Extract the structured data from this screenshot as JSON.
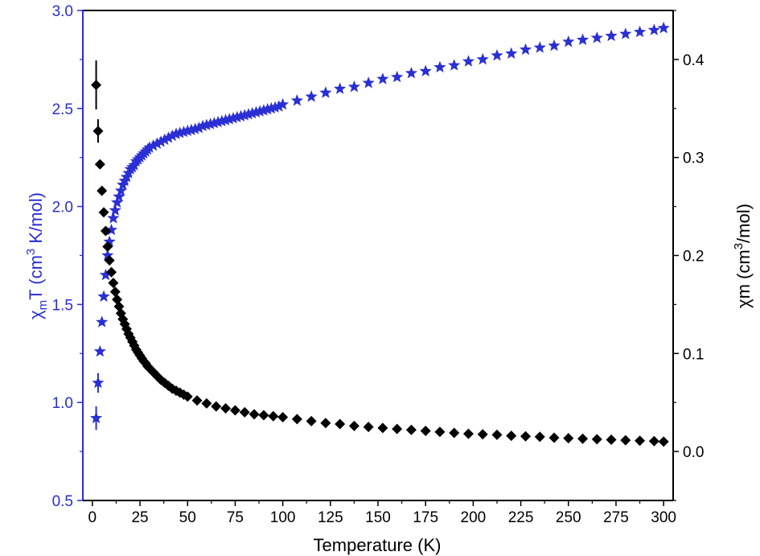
{
  "chart_data": {
    "type": "scatter",
    "xlabel": "Temperature (K)",
    "ylabel_left": {
      "main": "χ",
      "sub": "m",
      "mid": "T (cm",
      "sup": "3",
      "tail": " K/mol)"
    },
    "ylabel_right": {
      "main": "χm (cm",
      "sup": "3",
      "tail": "/mol)"
    },
    "xlim": [
      -5,
      305
    ],
    "ylim_left": [
      0.5,
      3.0
    ],
    "ylim_right": [
      -0.05,
      0.45
    ],
    "x_ticks": [
      0,
      25,
      50,
      75,
      100,
      125,
      150,
      175,
      200,
      225,
      250,
      275,
      300
    ],
    "y_left_ticks": [
      "0.5",
      "1.0",
      "1.5",
      "2.0",
      "2.5",
      "3.0"
    ],
    "y_right_ticks": [
      "0.0",
      "0.1",
      "0.2",
      "0.3",
      "0.4"
    ],
    "colors": {
      "left_axis": "#2a2fd4",
      "chiT_marker": "#2a2fd4",
      "chi_marker": "#000000",
      "right_axis": "#000000"
    },
    "series": [
      {
        "id": "chiT",
        "axis": "left",
        "marker": "star",
        "x": [
          2,
          3,
          4,
          5,
          6,
          7,
          8,
          9,
          10,
          11,
          12,
          13,
          14,
          15,
          16,
          17,
          18,
          19,
          20,
          21,
          22,
          23,
          24,
          25,
          26,
          27,
          28,
          29,
          30,
          32,
          34,
          36,
          38,
          40,
          42,
          44,
          46,
          48,
          50,
          52,
          54,
          56,
          58,
          60,
          62,
          64,
          66,
          68,
          70,
          72,
          74,
          76,
          78,
          80,
          82,
          84,
          86,
          88,
          90,
          92,
          94,
          96,
          98,
          100,
          107.5,
          115,
          122.5,
          130,
          137.5,
          145,
          152.5,
          160,
          167.5,
          175,
          182.5,
          190,
          197.5,
          205,
          212.5,
          220,
          227.5,
          235,
          242.5,
          250,
          257.5,
          265,
          272.5,
          280,
          287.5,
          295,
          300
        ],
        "y": [
          0.92,
          1.1,
          1.26,
          1.41,
          1.54,
          1.65,
          1.75,
          1.82,
          1.88,
          1.94,
          1.98,
          2.02,
          2.05,
          2.08,
          2.11,
          2.13,
          2.15,
          2.17,
          2.19,
          2.2,
          2.21,
          2.23,
          2.24,
          2.25,
          2.26,
          2.27,
          2.28,
          2.29,
          2.3,
          2.31,
          2.32,
          2.33,
          2.34,
          2.35,
          2.36,
          2.37,
          2.375,
          2.38,
          2.385,
          2.39,
          2.395,
          2.4,
          2.41,
          2.415,
          2.42,
          2.425,
          2.43,
          2.435,
          2.44,
          2.445,
          2.45,
          2.455,
          2.46,
          2.465,
          2.47,
          2.475,
          2.48,
          2.485,
          2.49,
          2.495,
          2.5,
          2.505,
          2.51,
          2.52,
          2.54,
          2.56,
          2.58,
          2.6,
          2.61,
          2.63,
          2.65,
          2.66,
          2.68,
          2.69,
          2.71,
          2.72,
          2.74,
          2.75,
          2.77,
          2.78,
          2.8,
          2.81,
          2.82,
          2.84,
          2.85,
          2.86,
          2.87,
          2.88,
          2.89,
          2.9,
          2.91
        ]
      },
      {
        "id": "chi",
        "axis": "right",
        "marker": "diamond",
        "x": [
          2,
          3,
          4,
          5,
          6,
          7,
          8,
          9,
          10,
          11,
          12,
          13,
          14,
          15,
          16,
          17,
          18,
          19,
          20,
          21,
          22,
          23,
          24,
          25,
          26,
          27,
          28,
          29,
          30,
          32,
          34,
          36,
          38,
          40,
          42,
          44,
          46,
          48,
          50,
          55,
          60,
          65,
          70,
          75,
          80,
          85,
          90,
          95,
          100,
          107.5,
          115,
          122.5,
          130,
          137.5,
          145,
          152.5,
          160,
          167.5,
          175,
          182.5,
          190,
          197.5,
          205,
          212.5,
          220,
          227.5,
          235,
          242.5,
          250,
          257.5,
          265,
          272.5,
          280,
          287.5,
          295,
          300
        ],
        "y": [
          0.374,
          0.327,
          0.293,
          0.266,
          0.244,
          0.225,
          0.209,
          0.195,
          0.183,
          0.172,
          0.163,
          0.155,
          0.148,
          0.141,
          0.135,
          0.13,
          0.125,
          0.12,
          0.116,
          0.112,
          0.108,
          0.104,
          0.101,
          0.098,
          0.095,
          0.092,
          0.09,
          0.087,
          0.085,
          0.081,
          0.077,
          0.073,
          0.07,
          0.067,
          0.064,
          0.062,
          0.06,
          0.058,
          0.056,
          0.052,
          0.049,
          0.046,
          0.044,
          0.042,
          0.04,
          0.038,
          0.037,
          0.036,
          0.035,
          0.033,
          0.031,
          0.029,
          0.028,
          0.026,
          0.025,
          0.024,
          0.023,
          0.022,
          0.021,
          0.02,
          0.019,
          0.018,
          0.0175,
          0.017,
          0.016,
          0.0155,
          0.015,
          0.014,
          0.0135,
          0.013,
          0.0125,
          0.012,
          0.0115,
          0.011,
          0.0105,
          0.01
        ]
      }
    ],
    "error_bars": [
      {
        "series": "chi",
        "x": 2,
        "y": 0.374,
        "err": 0.025
      },
      {
        "series": "chi",
        "x": 3,
        "y": 0.327,
        "err": 0.012
      },
      {
        "series": "chiT",
        "x": 2,
        "y": 0.92,
        "err": 0.06
      },
      {
        "series": "chiT",
        "x": 3,
        "y": 1.1,
        "err": 0.05
      }
    ]
  }
}
